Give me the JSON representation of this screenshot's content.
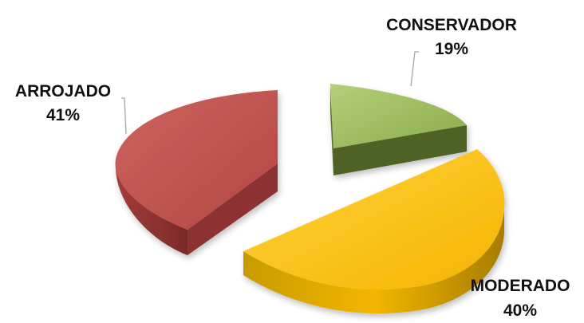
{
  "chart_data": {
    "type": "pie",
    "style": "3d-exploded",
    "slices": [
      {
        "label": "CONSERVADOR",
        "value": 19,
        "value_label": "19%",
        "color": "#9bbb59",
        "side_color": "#4f6228"
      },
      {
        "label": "MODERADO",
        "value": 40,
        "value_label": "40%",
        "color": "#ffc000",
        "side_color": "#b8860b"
      },
      {
        "label": "ARROJADO",
        "value": 41,
        "value_label": "41%",
        "color": "#c0504d",
        "side_color": "#8c3230"
      }
    ],
    "legend": false
  }
}
